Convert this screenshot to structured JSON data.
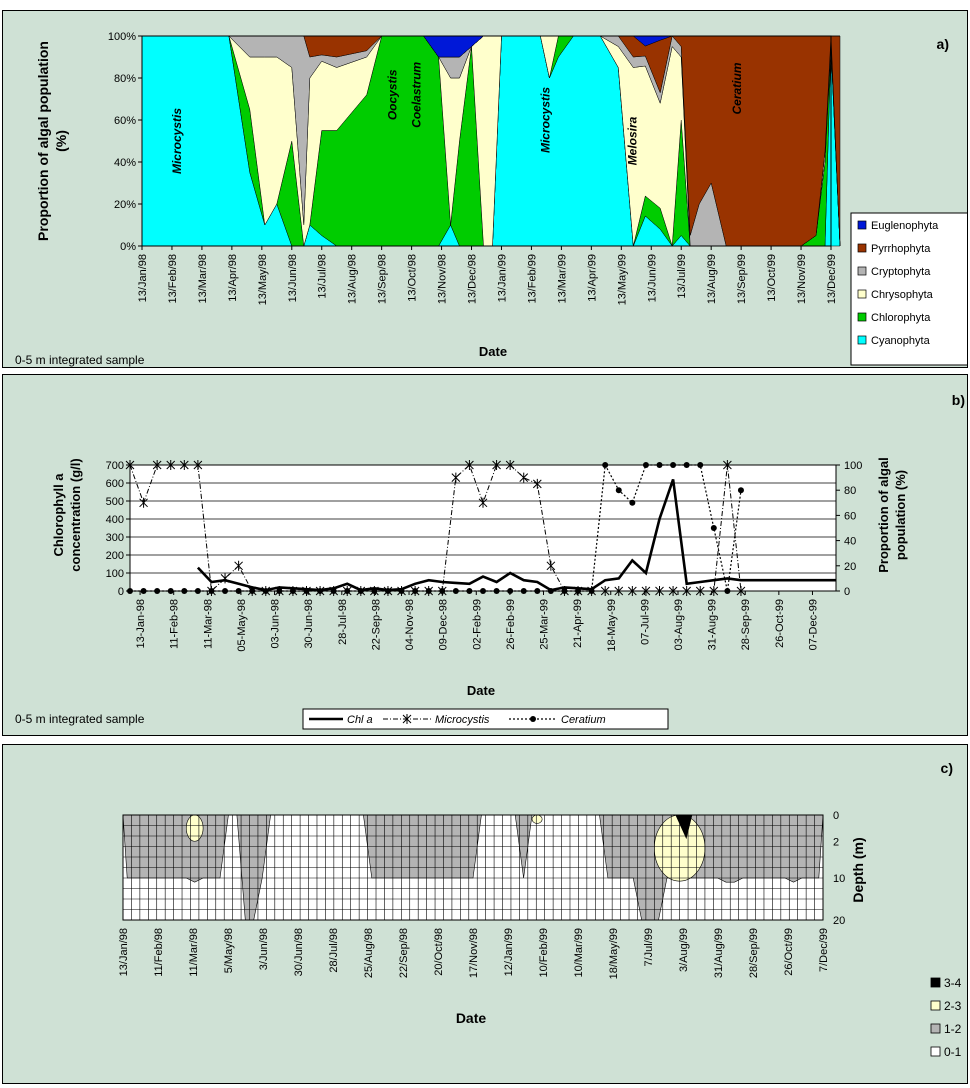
{
  "chart_data": [
    {
      "type": "area",
      "stacked": true,
      "percent": true,
      "panel_label": "a)",
      "ylabel": "Proportion of algal population (%)",
      "xlabel": "Date",
      "footnote": "0-5 m integrated sample",
      "y_ticks": [
        "0%",
        "20%",
        "40%",
        "60%",
        "80%",
        "100%"
      ],
      "x_ticks": [
        "13/Jan/98",
        "13/Feb/98",
        "13/Mar/98",
        "13/Apr/98",
        "13/May/98",
        "13/Jun/98",
        "13/Jul/98",
        "13/Aug/98",
        "13/Sep/98",
        "13/Oct/98",
        "13/Nov/98",
        "13/Dec/98",
        "13/Jan/99",
        "13/Feb/99",
        "13/Mar/99",
        "13/Apr/99",
        "13/May/99",
        "13/Jun/99",
        "13/Jul/99",
        "13/Aug/99",
        "13/Sep/99",
        "13/Oct/99",
        "13/Nov/99",
        "13/Dec/99"
      ],
      "annotations": [
        {
          "text": "Microcystis",
          "month": 1.3,
          "value": 50
        },
        {
          "text": "Oocystis",
          "month": 8.5,
          "value": 72
        },
        {
          "text": "Coelastrum",
          "month": 9.3,
          "value": 72
        },
        {
          "text": "Microcystis",
          "month": 13.6,
          "value": 60
        },
        {
          "text": "Melosira",
          "month": 16.5,
          "value": 50
        },
        {
          "text": "Ceratium",
          "month": 20.0,
          "value": 75
        }
      ],
      "series": [
        {
          "name": "Euglenophyta",
          "color": "#0018d8"
        },
        {
          "name": "Pyrrhophyta",
          "color": "#993300"
        },
        {
          "name": "Cryptophyta",
          "color": "#b4b4b4"
        },
        {
          "name": "Chrysophyta",
          "color": "#ffffcc"
        },
        {
          "name": "Chlorophyta",
          "color": "#00cc00"
        },
        {
          "name": "Cyanophyta",
          "color": "#00ffff"
        }
      ],
      "x": [
        0,
        1,
        2,
        2.9,
        3.6,
        4.1,
        4.5,
        5.0,
        5.4,
        5.6,
        6.0,
        6.5,
        7.5,
        8.0,
        8.6,
        9.4,
        9.9,
        10.3,
        10.6,
        11.0,
        11.4,
        11.7,
        12.0,
        13.0,
        13.3,
        13.6,
        13.9,
        14.4,
        14.9,
        15.3,
        15.9,
        16.4,
        16.8,
        17.3,
        17.7,
        18.0,
        18.3,
        18.6,
        19.0,
        19.5,
        20.0,
        21.0,
        21.4,
        21.8,
        22.0,
        22.5,
        22.8,
        23.0,
        23.3
      ],
      "values": {
        "Cyanophyta": [
          100,
          100,
          100,
          100,
          35,
          10,
          20,
          0,
          0,
          10,
          5,
          0,
          0,
          0,
          0,
          0,
          0,
          10,
          0,
          0,
          0,
          0,
          100,
          100,
          100,
          80,
          90,
          100,
          100,
          100,
          85,
          0,
          15,
          8,
          0,
          5,
          0,
          0,
          0,
          0,
          0,
          0,
          0,
          0,
          0,
          0,
          0,
          95,
          0
        ],
        "Chlorophyta": [
          0,
          0,
          0,
          0,
          30,
          0,
          0,
          50,
          0,
          0,
          50,
          55,
          72,
          100,
          100,
          100,
          90,
          0,
          50,
          95,
          0,
          0,
          0,
          0,
          0,
          0,
          10,
          0,
          0,
          0,
          0,
          0,
          10,
          10,
          0,
          55,
          0,
          0,
          0,
          0,
          0,
          0,
          0,
          0,
          0,
          5,
          40,
          0,
          0
        ],
        "Chrysophyta": [
          0,
          0,
          0,
          0,
          25,
          80,
          70,
          35,
          10,
          70,
          33,
          30,
          18,
          0,
          0,
          0,
          0,
          70,
          30,
          0,
          100,
          100,
          0,
          0,
          0,
          20,
          0,
          0,
          0,
          0,
          10,
          85,
          65,
          50,
          95,
          30,
          0,
          0,
          0,
          0,
          0,
          0,
          0,
          0,
          0,
          0,
          5,
          5,
          0
        ],
        "Cryptophyta": [
          0,
          0,
          0,
          0,
          10,
          10,
          10,
          15,
          90,
          10,
          3,
          5,
          3,
          0,
          0,
          0,
          0,
          10,
          10,
          0,
          0,
          0,
          0,
          0,
          0,
          0,
          0,
          0,
          0,
          0,
          5,
          5,
          5,
          5,
          5,
          5,
          5,
          20,
          30,
          0,
          0,
          0,
          0,
          0,
          0,
          0,
          0,
          0,
          0
        ],
        "Pyrrhophyta": [
          0,
          0,
          0,
          0,
          0,
          0,
          0,
          0,
          0,
          10,
          9,
          10,
          7,
          0,
          0,
          0,
          0,
          0,
          0,
          0,
          0,
          0,
          0,
          0,
          0,
          0,
          0,
          0,
          0,
          0,
          0,
          10,
          5,
          25,
          0,
          5,
          95,
          80,
          70,
          100,
          100,
          100,
          100,
          100,
          100,
          95,
          55,
          0,
          100
        ],
        "Euglenophyta": [
          0,
          0,
          0,
          0,
          0,
          0,
          0,
          0,
          0,
          0,
          0,
          0,
          0,
          0,
          0,
          0,
          10,
          10,
          10,
          5,
          0,
          0,
          0,
          0,
          0,
          0,
          0,
          0,
          0,
          0,
          0,
          0,
          5,
          2,
          0,
          0,
          0,
          0,
          0,
          0,
          0,
          0,
          0,
          0,
          0,
          0,
          0,
          0,
          0
        ]
      }
    },
    {
      "type": "line",
      "panel_label": "b)",
      "ylabel": "Chlorophyll a concentration (g/l)",
      "ylabel_lines": [
        "Chlorophyll a",
        "concentration (g/l)"
      ],
      "y2label": "Proportion of algal population (%)",
      "y2label_lines": [
        "Proportion of algal",
        "population (%)"
      ],
      "xlabel": "Date",
      "footnote": "0-5 m integrated sample",
      "ylim": [
        0,
        700
      ],
      "y2lim": [
        0,
        100
      ],
      "y_ticks": [
        "0",
        "100",
        "200",
        "300",
        "400",
        "500",
        "600",
        "700"
      ],
      "y2_ticks": [
        "0",
        "20",
        "40",
        "60",
        "80",
        "100"
      ],
      "x_ticks": [
        "13-Jan-98",
        "11-Feb-98",
        "11-Mar-98",
        "05-May-98",
        "03-Jun-98",
        "30-Jun-98",
        "28-Jul-98",
        "22-Sep-98",
        "04-Nov-98",
        "09-Dec-98",
        "02-Feb-99",
        "26-Feb-99",
        "25-Mar-99",
        "21-Apr-99",
        "18-May-99",
        "07-Jul-99",
        "03-Aug-99",
        "31-Aug-99",
        "28-Sep-99",
        "26-Oct-99",
        "07-Dec-99"
      ],
      "legend": [
        "Chl a",
        "Microcystis",
        "Ceratium"
      ],
      "series": [
        {
          "name": "Chl a",
          "axis": "left",
          "x": [
            5,
            6,
            7,
            8,
            9,
            10,
            11,
            12,
            13,
            14,
            15,
            16,
            17,
            18,
            19,
            20,
            21,
            22,
            23,
            24,
            25,
            26,
            27,
            28,
            29,
            30,
            31,
            32,
            33,
            34,
            35,
            36,
            37,
            38,
            39,
            40,
            41,
            42,
            43,
            44,
            45,
            46,
            47,
            48,
            49,
            50,
            51,
            52
          ],
          "values": [
            130,
            50,
            60,
            40,
            20,
            5,
            20,
            15,
            10,
            5,
            15,
            40,
            5,
            15,
            5,
            10,
            40,
            60,
            50,
            45,
            40,
            80,
            50,
            100,
            60,
            50,
            5,
            20,
            15,
            10,
            60,
            70,
            170,
            100,
            400,
            620,
            40,
            50,
            60,
            70,
            60,
            60,
            60,
            60,
            60,
            60,
            60,
            60
          ]
        },
        {
          "name": "Microcystis",
          "axis": "right",
          "x": [
            0,
            1,
            2,
            3,
            4,
            5,
            6,
            7,
            8,
            9,
            10,
            11,
            12,
            13,
            14,
            15,
            16,
            17,
            18,
            19,
            20,
            21,
            22,
            23,
            24,
            25,
            26,
            27,
            28,
            29,
            30,
            31,
            32,
            33,
            34,
            35,
            36,
            37,
            38,
            39,
            40,
            41,
            42,
            43,
            44,
            45
          ],
          "values": [
            100,
            70,
            100,
            100,
            100,
            100,
            0,
            10,
            20,
            0,
            0,
            0,
            0,
            0,
            0,
            0,
            0,
            0,
            0,
            0,
            0,
            0,
            0,
            0,
            90,
            100,
            70,
            100,
            100,
            90,
            85,
            20,
            0,
            0,
            0,
            0,
            0,
            0,
            0,
            0,
            0,
            0,
            0,
            0,
            100,
            0
          ]
        },
        {
          "name": "Ceratium",
          "axis": "right",
          "x": [
            0,
            1,
            2,
            3,
            4,
            5,
            6,
            7,
            8,
            9,
            10,
            11,
            12,
            13,
            14,
            15,
            16,
            17,
            18,
            19,
            20,
            21,
            22,
            23,
            24,
            25,
            26,
            27,
            28,
            29,
            30,
            31,
            32,
            33,
            34,
            35,
            36,
            37,
            38,
            39,
            40,
            41,
            42,
            43,
            44,
            45
          ],
          "values": [
            0,
            0,
            0,
            0,
            0,
            0,
            0,
            0,
            0,
            0,
            0,
            0,
            0,
            0,
            0,
            0,
            0,
            0,
            0,
            0,
            0,
            0,
            0,
            0,
            0,
            0,
            0,
            0,
            0,
            0,
            0,
            0,
            0,
            0,
            0,
            100,
            80,
            70,
            100,
            100,
            100,
            100,
            100,
            50,
            0,
            80
          ]
        }
      ]
    },
    {
      "type": "heatmap",
      "panel_label": "c)",
      "ylabel": "Depth (m)",
      "xlabel": "Date",
      "y_ticks": [
        "0",
        "2",
        "10",
        "20"
      ],
      "x_ticks": [
        "13/Jan/98",
        "11/Feb/98",
        "11/Mar/98",
        "5/May/98",
        "3/Jun/98",
        "30/Jun/98",
        "28/Jul/98",
        "25/Aug/98",
        "22/Sep/98",
        "20/Oct/98",
        "17/Nov/98",
        "12/Jan/99",
        "10/Feb/99",
        "10/Mar/99",
        "18/May/99",
        "7/Jul/99",
        "3/Aug/99",
        "31/Aug/99",
        "28/Sep/99",
        "26/Oct/99",
        "7/Dec/99"
      ],
      "legend": [
        {
          "label": "3-4",
          "color": "#000000"
        },
        {
          "label": "2-3",
          "color": "#ffffcc"
        },
        {
          "label": "1-2",
          "color": "#b4b4b4"
        },
        {
          "label": "0-1",
          "color": "#ffffff"
        }
      ],
      "boundary_1_2_depth": [
        10,
        10,
        10,
        10,
        10,
        10,
        10,
        10,
        11,
        10,
        10,
        10,
        0,
        0,
        20,
        20,
        10,
        0,
        0,
        0,
        0,
        0,
        0,
        0,
        0,
        0,
        0,
        0,
        0,
        10,
        10,
        10,
        10,
        10,
        10,
        10,
        10,
        10,
        10,
        10,
        10,
        10,
        0,
        0,
        0,
        0,
        0,
        10,
        0,
        0,
        0,
        0,
        0,
        0,
        0,
        0,
        0,
        10,
        10,
        10,
        10,
        20,
        20,
        20,
        10,
        10,
        10,
        10,
        10,
        10,
        10,
        11,
        11,
        10,
        10,
        10,
        10,
        10,
        10,
        11,
        10,
        10,
        10
      ],
      "boundary_2_3_depth": [
        -1,
        -1,
        -1,
        -1,
        -1,
        -1,
        -1,
        -1,
        -1,
        -1,
        -1,
        -1,
        -1,
        -1,
        -1,
        -1,
        -1,
        -1,
        -1,
        -1,
        -1,
        -1,
        -1,
        -1,
        -1,
        -1,
        -1,
        -1,
        -1,
        -1,
        -1,
        -1,
        -1,
        -1,
        -1,
        -1,
        -1,
        -1,
        -1,
        -1,
        -1,
        -1,
        -1,
        -1,
        -1,
        -1,
        -1,
        -1,
        -1,
        -1,
        -1,
        -1,
        -1,
        -1,
        -1,
        -1,
        -1,
        -1,
        -1,
        -1,
        -1,
        -1,
        -1,
        -1,
        -1,
        -1,
        -1,
        -1,
        -1,
        -1,
        -1,
        -1,
        -1,
        -1,
        -1,
        -1,
        -1,
        -1,
        -1,
        -1,
        -1,
        -1,
        -1
      ]
    }
  ]
}
